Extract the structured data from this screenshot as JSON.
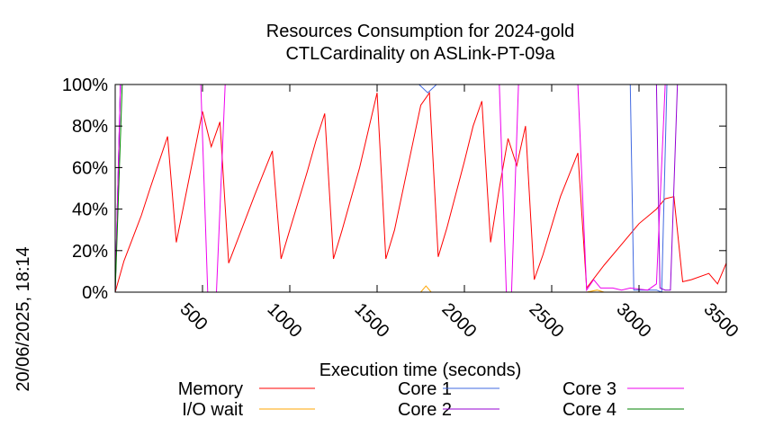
{
  "side_label": "20/06/2025, 18:14",
  "chart_data": {
    "type": "line",
    "title": [
      "Resources Consumption for 2024-gold",
      "CTLCardinality on ASLink-PT-09a"
    ],
    "xlabel": "Execution time (seconds)",
    "ylabel": "",
    "xlim": [
      0,
      3500
    ],
    "ylim": [
      0,
      100
    ],
    "x_ticks": [
      500,
      1000,
      1500,
      2000,
      2500,
      3000,
      3500
    ],
    "y_ticks": [
      0,
      20,
      40,
      60,
      80,
      100
    ],
    "y_tick_labels": [
      "0%",
      "20%",
      "40%",
      "60%",
      "80%",
      "100%"
    ],
    "grid": false,
    "legend": "bottom",
    "series": [
      {
        "name": "Memory",
        "color": "#ff0000",
        "points": [
          [
            0,
            0
          ],
          [
            50,
            15
          ],
          [
            150,
            37
          ],
          [
            200,
            50
          ],
          [
            300,
            75
          ],
          [
            350,
            24
          ],
          [
            400,
            45
          ],
          [
            500,
            87
          ],
          [
            550,
            70
          ],
          [
            600,
            82
          ],
          [
            650,
            14
          ],
          [
            700,
            25
          ],
          [
            800,
            47
          ],
          [
            900,
            68
          ],
          [
            950,
            16
          ],
          [
            1000,
            30
          ],
          [
            1100,
            58
          ],
          [
            1150,
            73
          ],
          [
            1200,
            86
          ],
          [
            1250,
            16
          ],
          [
            1300,
            30
          ],
          [
            1400,
            60
          ],
          [
            1500,
            96
          ],
          [
            1550,
            16
          ],
          [
            1600,
            30
          ],
          [
            1700,
            70
          ],
          [
            1750,
            90
          ],
          [
            1800,
            96
          ],
          [
            1850,
            17
          ],
          [
            1900,
            31
          ],
          [
            2000,
            63
          ],
          [
            2050,
            80
          ],
          [
            2100,
            92
          ],
          [
            2150,
            24
          ],
          [
            2200,
            50
          ],
          [
            2250,
            74
          ],
          [
            2300,
            61
          ],
          [
            2350,
            80
          ],
          [
            2400,
            6
          ],
          [
            2450,
            18
          ],
          [
            2550,
            46
          ],
          [
            2650,
            67
          ],
          [
            2700,
            2
          ],
          [
            2800,
            13
          ],
          [
            2900,
            23
          ],
          [
            3000,
            33
          ],
          [
            3100,
            40
          ],
          [
            3150,
            45
          ],
          [
            3200,
            46
          ],
          [
            3250,
            5
          ],
          [
            3300,
            6
          ],
          [
            3400,
            9
          ],
          [
            3450,
            4
          ],
          [
            3500,
            14
          ]
        ]
      },
      {
        "name": "I/O wait",
        "color": "#ffa500",
        "points": [
          [
            1700,
            0
          ],
          [
            1750,
            0
          ],
          [
            1780,
            3
          ],
          [
            1810,
            0
          ],
          [
            2700,
            0
          ],
          [
            2760,
            1
          ],
          [
            2800,
            0
          ]
        ]
      },
      {
        "name": "Core 1",
        "color": "#4169e1",
        "points": [
          [
            0,
            0
          ],
          [
            30,
            100
          ],
          [
            1740,
            100
          ],
          [
            1790,
            96
          ],
          [
            1840,
            100
          ],
          [
            2950,
            100
          ],
          [
            2970,
            1
          ],
          [
            3100,
            1
          ],
          [
            3130,
            0
          ],
          [
            3160,
            100
          ],
          [
            3500,
            100
          ]
        ]
      },
      {
        "name": "Core 2",
        "color": "#9400d3",
        "points": [
          [
            0,
            0
          ],
          [
            30,
            100
          ],
          [
            3100,
            100
          ],
          [
            3120,
            2
          ],
          [
            3150,
            1
          ],
          [
            3180,
            1
          ],
          [
            3220,
            100
          ],
          [
            3500,
            100
          ]
        ]
      },
      {
        "name": "Core 3",
        "color": "#ee00ee",
        "points": [
          [
            0,
            0
          ],
          [
            30,
            100
          ],
          [
            490,
            100
          ],
          [
            530,
            0
          ],
          [
            580,
            0
          ],
          [
            630,
            100
          ],
          [
            2200,
            100
          ],
          [
            2240,
            0
          ],
          [
            2270,
            0
          ],
          [
            2310,
            100
          ],
          [
            2650,
            100
          ],
          [
            2700,
            1
          ],
          [
            2740,
            6
          ],
          [
            2780,
            2
          ],
          [
            2850,
            2
          ],
          [
            2900,
            1
          ],
          [
            2950,
            2
          ],
          [
            3050,
            1
          ],
          [
            3100,
            4
          ],
          [
            3150,
            100
          ],
          [
            3500,
            100
          ]
        ]
      },
      {
        "name": "Core 4",
        "color": "#008000",
        "points": [
          [
            0,
            0
          ],
          [
            40,
            100
          ],
          [
            3500,
            100
          ]
        ]
      }
    ]
  }
}
